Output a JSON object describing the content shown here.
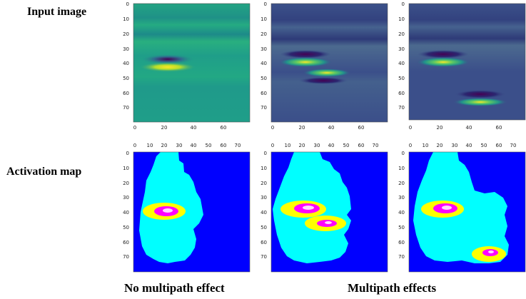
{
  "labels": {
    "input_row": "Input image",
    "activation_row": "Activation map",
    "caption_left": "No multipath effect",
    "caption_right": "Multipath effects"
  },
  "colors": {
    "input_bg_panel1": "#1f9e89",
    "input_bg_panel23": "#3b4f8a",
    "activation_bg": "#0000ff",
    "activation_mid": "#00ffff",
    "activation_high": "#ffff00",
    "activation_peak": "#ff00ff"
  },
  "axes": {
    "y_ticks": [
      "0",
      "10",
      "20",
      "30",
      "40",
      "50",
      "60",
      "70"
    ],
    "x_ticks_input": [
      "0",
      "20",
      "40",
      "60"
    ],
    "x_ticks_activation": [
      "0",
      "10",
      "20",
      "30",
      "40",
      "50",
      "60",
      "70"
    ]
  }
}
